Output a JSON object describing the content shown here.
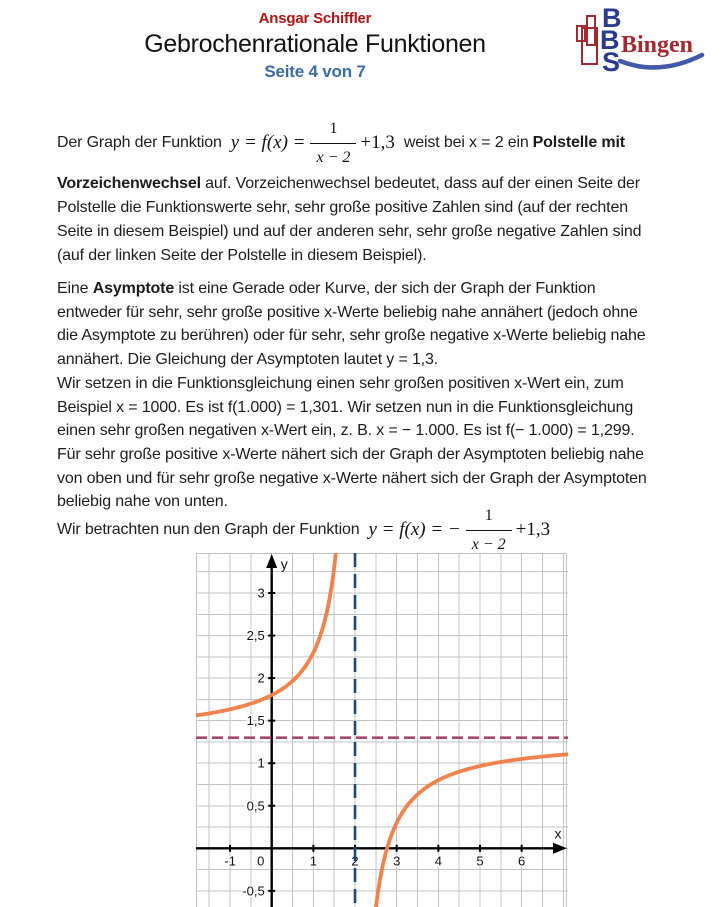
{
  "header": {
    "author": "Ansgar Schiffler",
    "title": "Gebrochenrationale Funktionen",
    "page_info": "Seite 4 von 7",
    "logo": {
      "b1": "B",
      "b2": "B",
      "s": "S",
      "name": "Bingen"
    }
  },
  "body": {
    "p1_l1": {
      "pre": "Der Graph der Funktion",
      "mid": "weist bei x = 2 ein",
      "bold": "Polstelle mit"
    },
    "p1_lines": [
      [
        {
          "t": "Vorzeichenwechsel",
          "b": true
        },
        {
          "t": " auf. Vorzeichenwechsel bedeutet, dass auf der einen Seite der",
          "b": false
        }
      ],
      [
        {
          "t": "Polstelle die Funktionswerte sehr, sehr große positive Zahlen sind (auf der rechten",
          "b": false
        }
      ],
      [
        {
          "t": "Seite in diesem Beispiel) und auf der anderen sehr, sehr große negative Zahlen sind",
          "b": false
        }
      ],
      [
        {
          "t": "(auf der linken Seite der Polstelle in diesem Beispiel).",
          "b": false
        }
      ]
    ],
    "p2_lines": [
      [
        {
          "t": "Eine ",
          "b": false
        },
        {
          "t": "Asymptote",
          "b": true
        },
        {
          "t": " ist eine Gerade oder Kurve, der sich der Graph der Funktion",
          "b": false
        }
      ],
      [
        {
          "t": "entweder für sehr, sehr große positive x-Werte beliebig nahe annähert (jedoch ohne",
          "b": false
        }
      ],
      [
        {
          "t": "die Asymptote zu berühren) oder für sehr, sehr große negative x-Werte beliebig nahe",
          "b": false
        }
      ],
      [
        {
          "t": "annähert. Die Gleichung der Asymptoten lautet y = 1,3.",
          "b": false
        }
      ],
      [
        {
          "t": "Wir setzen in die Funktionsgleichung einen sehr großen positiven x-Wert ein, zum",
          "b": false
        }
      ],
      [
        {
          "t": "Beispiel x = 1000. Es ist f(1.000) = 1,301. Wir setzen nun in die Funktionsgleichung",
          "b": false
        }
      ],
      [
        {
          "t": "einen sehr großen negativen x-Wert ein, z. B. x = − 1.000. Es ist f(− 1.000) = 1,299.",
          "b": false
        }
      ],
      [
        {
          "t": "Für sehr große positive x-Werte nähert sich der Graph der Asymptoten beliebig nahe",
          "b": false
        }
      ],
      [
        {
          "t": "von oben und für sehr große negative x-Werte nähert sich der Graph der Asymptoten",
          "b": false
        }
      ],
      [
        {
          "t": "beliebig nahe von unten.",
          "b": false
        }
      ]
    ],
    "p3_pre": "Wir betrachten nun den Graph der Funktion"
  },
  "formula1": {
    "lhs": "y = f(x) =",
    "num": "1",
    "den": "x − 2",
    "rhs": "+1,3"
  },
  "formula2": {
    "lhs": "y = f(x) = −",
    "num": "1",
    "den": "x − 2",
    "rhs": "+1,3"
  },
  "chart_data": {
    "type": "line",
    "title": "",
    "xlabel": "x",
    "ylabel": "y",
    "function": {
      "form": "y = a/(x-h)+k",
      "a": -1,
      "h": 2,
      "k": 1.3,
      "label": "f(x) = −1/(x−2) + 1,3"
    },
    "x_visible": [
      -1.82,
      7.12
    ],
    "y_visible": [
      -0.69,
      3.47
    ],
    "x_ticks": [
      -1,
      0,
      1,
      2,
      3,
      4,
      5,
      6
    ],
    "x_tick_labels": [
      "-1",
      "0",
      "1",
      "2",
      "3",
      "4",
      "5",
      "6"
    ],
    "y_ticks": [
      -0.5,
      0.5,
      1,
      1.5,
      2,
      2.5,
      3
    ],
    "y_tick_labels": [
      "-0,5",
      "0,5",
      "1",
      "1,5",
      "2",
      "2,5",
      "3"
    ],
    "x_grid_step": 0.5,
    "y_grid_step": 0.25,
    "grid": true,
    "grid_color": "#c3c3c3",
    "axis_color": "#000000",
    "asymptote_horizontal": {
      "y": 1.3,
      "color": "#a8476e",
      "style": "dashed"
    },
    "asymptote_vertical": {
      "x": 2,
      "color": "#17497b",
      "style": "dashed"
    },
    "series": [
      {
        "name": "f(x) = −1/(x−2) + 1,3",
        "color": "#f0824e",
        "sample_points": [
          [
            -1,
            1.633
          ],
          [
            0,
            1.8
          ],
          [
            1,
            2.3
          ],
          [
            1.5,
            3.3
          ],
          [
            2.5,
            -0.7
          ],
          [
            3,
            0.3
          ],
          [
            4,
            0.8
          ],
          [
            5,
            0.967
          ],
          [
            6,
            1.05
          ],
          [
            7,
            1.1
          ]
        ]
      }
    ]
  }
}
